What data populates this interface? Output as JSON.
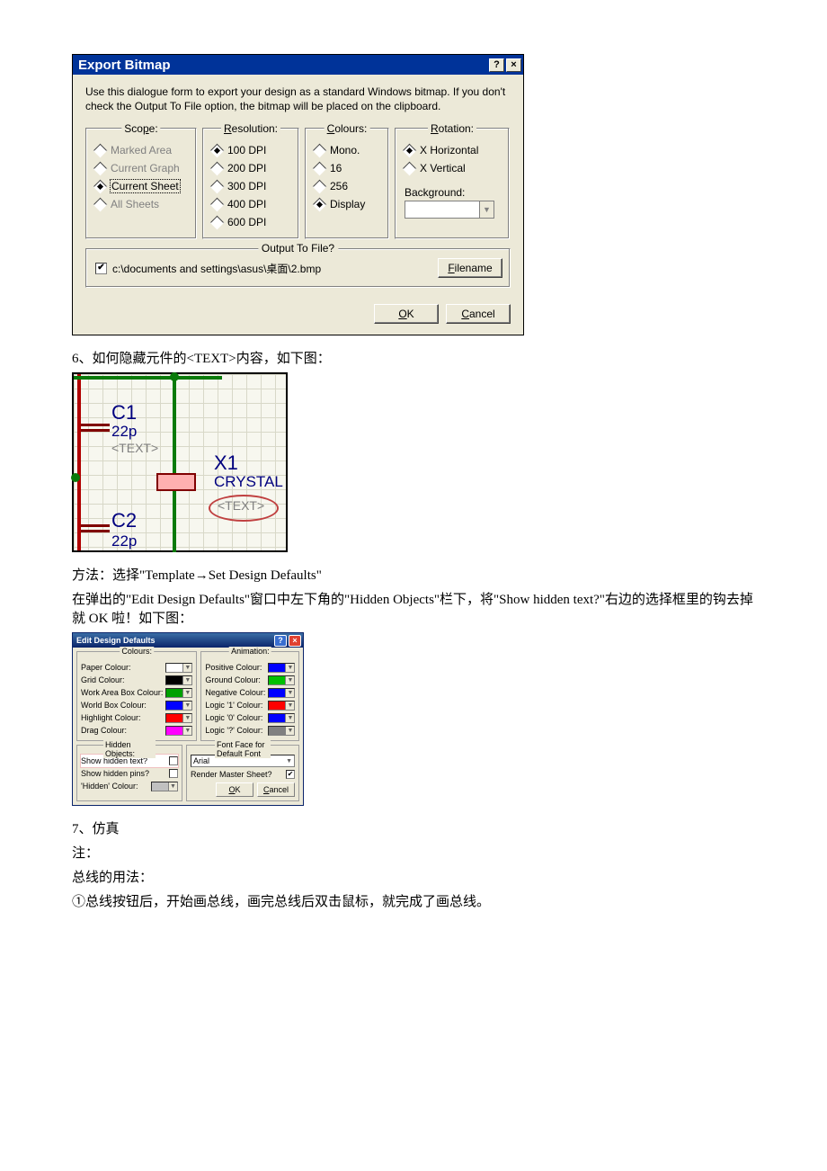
{
  "dlg1": {
    "title": "Export Bitmap",
    "desc": "Use this dialogue form to export your design as a standard Windows bitmap. If you don't check the Output To File option, the bitmap will be placed on the clipboard.",
    "groups": {
      "scope": {
        "legend_pre": "Sco",
        "legend_u": "p",
        "legend_post": "e:",
        "items": [
          "Marked Area",
          "Current Graph",
          "Current Sheet",
          "All Sheets"
        ],
        "selected": 2,
        "disabled": [
          0,
          1,
          3
        ]
      },
      "resolution": {
        "legend_pre": "",
        "legend_u": "R",
        "legend_post": "esolution:",
        "items": [
          "100 DPI",
          "200 DPI",
          "300 DPI",
          "400 DPI",
          "600 DPI"
        ],
        "selected": 0
      },
      "colours": {
        "legend_pre": "",
        "legend_u": "C",
        "legend_post": "olours:",
        "items": [
          "Mono.",
          "16",
          "256",
          "Display"
        ],
        "selected": 3
      },
      "rotation": {
        "legend_pre": "",
        "legend_u": "R",
        "legend_post": "otation:",
        "items": [
          "X Horizontal",
          "X Vertical"
        ],
        "selected": 0,
        "bg_label": "Background:",
        "bg_color": "#ffffff"
      }
    },
    "output": {
      "legend_pre": "Output To ",
      "legend_u": "F",
      "legend_post": "ile?",
      "checked": true,
      "path": "c:\\documents and settings\\asus\\桌面\\2.bmp",
      "filename_btn_u": "F",
      "filename_btn_post": "ilename"
    },
    "ok_u": "O",
    "ok_post": "K",
    "cancel_u": "C",
    "cancel_post": "ancel"
  },
  "text": {
    "p1": "6、如何隐藏元件的<TEXT>内容，如下图：",
    "p2": "方法：选择\"Template→Set Design Defaults\"",
    "p3": "在弹出的\"Edit Design Defaults\"窗口中左下角的\"Hidden Objects\"栏下，将\"Show hidden text?\"右边的选择框里的钩去掉就 OK 啦！如下图：",
    "p4": "7、仿真",
    "p5": "注：",
    "p6": "总线的用法：",
    "p7": "①总线按钮后，开始画总线，画完总线后双击鼠标，就完成了画总线。"
  },
  "circuit": {
    "c1": "C1",
    "c1v": "22p",
    "t1": "<TEXT>",
    "x1": "X1",
    "crystal": "CRYSTAL",
    "t2": "<TEXT>",
    "c2": "C2",
    "c2v": "22p",
    "colors": {
      "red": "#b00000",
      "green": "#0a7a0a",
      "blue": "#00007f",
      "gray": "#808080",
      "bg": "#f7f7ef"
    }
  },
  "dlg2": {
    "title": "Edit Design Defaults",
    "col_legend": "Colours:",
    "anim_legend": "Animation:",
    "hidden_legend": "Hidden Objects:",
    "font_legend": "Font Face for Default Font",
    "colours": [
      {
        "label": "Paper Colour:",
        "color": "#ffffff"
      },
      {
        "label": "Grid Colour:",
        "color": "#000000"
      },
      {
        "label": "Work Area Box Colour:",
        "color": "#00a000"
      },
      {
        "label": "World Box Colour:",
        "color": "#0000ff"
      },
      {
        "label": "Highlight Colour:",
        "color": "#ff0000"
      },
      {
        "label": "Drag Colour:",
        "color": "#ff00ff"
      }
    ],
    "anim": [
      {
        "label": "Positive Colour:",
        "color": "#0000ff"
      },
      {
        "label": "Ground Colour:",
        "color": "#00c000"
      },
      {
        "label": "Negative Colour:",
        "color": "#0000ff"
      },
      {
        "label": "Logic '1' Colour:",
        "color": "#ff0000"
      },
      {
        "label": "Logic '0' Colour:",
        "color": "#0000ff"
      },
      {
        "label": "Logic '?' Colour:",
        "color": "#808080"
      }
    ],
    "hidden": [
      {
        "label": "Show hidden text?",
        "checked": false,
        "hl": true
      },
      {
        "label": "Show hidden pins?",
        "checked": false
      }
    ],
    "hidden_colour_label": "'Hidden' Colour:",
    "hidden_colour": "#c0c0c0",
    "font": "Arial",
    "master_label": "Render Master Sheet?",
    "master_checked": true,
    "ok_u": "O",
    "ok_post": "K",
    "cancel_u": "C",
    "cancel_post": "ancel"
  }
}
